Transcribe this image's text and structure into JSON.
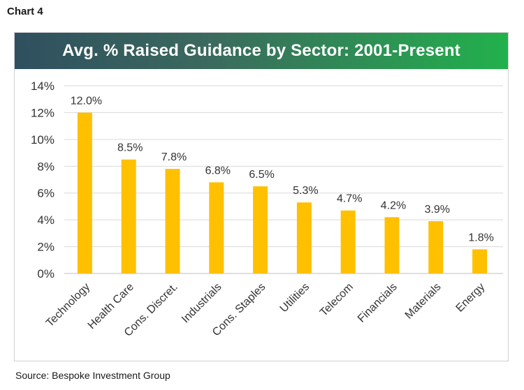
{
  "header": {
    "chart_label": "Chart 4",
    "source": "Source: Bespoke Investment Group"
  },
  "colors": {
    "bar": "#ffc000",
    "banner_start": "#2f4f5f",
    "banner_end": "#22b14c",
    "grid": "#d9d9d9"
  },
  "chart_data": {
    "type": "bar",
    "title": "Avg. % Raised Guidance by Sector: 2001-Present",
    "xlabel": "",
    "ylabel": "",
    "categories": [
      "Technology",
      "Health Care",
      "Cons. Discret.",
      "Industrials",
      "Cons. Staples",
      "Utilities",
      "Telecom",
      "Financials",
      "Materials",
      "Energy"
    ],
    "values": [
      12.0,
      8.5,
      7.8,
      6.8,
      6.5,
      5.3,
      4.7,
      4.2,
      3.9,
      1.8
    ],
    "data_labels": [
      "12.0%",
      "8.5%",
      "7.8%",
      "6.8%",
      "6.5%",
      "5.3%",
      "4.7%",
      "4.2%",
      "3.9%",
      "1.8%"
    ],
    "ylim": [
      0,
      14
    ],
    "yticks": [
      0,
      2,
      4,
      6,
      8,
      10,
      12,
      14
    ],
    "ytick_labels": [
      "0%",
      "2%",
      "4%",
      "6%",
      "8%",
      "10%",
      "12%",
      "14%"
    ],
    "grid": true,
    "legend": "none"
  }
}
